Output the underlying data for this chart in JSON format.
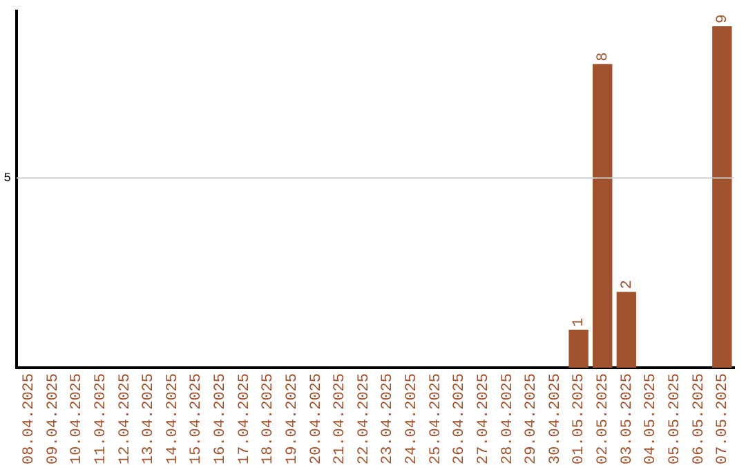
{
  "chart_data": {
    "type": "bar",
    "categories": [
      "08.04.2025",
      "09.04.2025",
      "10.04.2025",
      "11.04.2025",
      "12.04.2025",
      "13.04.2025",
      "14.04.2025",
      "15.04.2025",
      "16.04.2025",
      "17.04.2025",
      "18.04.2025",
      "19.04.2025",
      "20.04.2025",
      "21.04.2025",
      "22.04.2025",
      "23.04.2025",
      "24.04.2025",
      "25.04.2025",
      "26.04.2025",
      "27.04.2025",
      "28.04.2025",
      "29.04.2025",
      "30.04.2025",
      "01.05.2025",
      "02.05.2025",
      "03.05.2025",
      "04.05.2025",
      "05.05.2025",
      "06.05.2025",
      "07.05.2025"
    ],
    "values": [
      null,
      null,
      null,
      null,
      null,
      null,
      null,
      null,
      null,
      null,
      null,
      null,
      null,
      null,
      null,
      null,
      null,
      null,
      null,
      null,
      null,
      null,
      null,
      1,
      8,
      2,
      null,
      null,
      null,
      9
    ],
    "data_labels": true,
    "color": "#a0522d",
    "ylim": [
      0,
      9.4
    ],
    "ref_lines": [
      {
        "axis": "y",
        "value": 5,
        "label": "5",
        "color": "#cccccc"
      }
    ],
    "legend": false
  }
}
